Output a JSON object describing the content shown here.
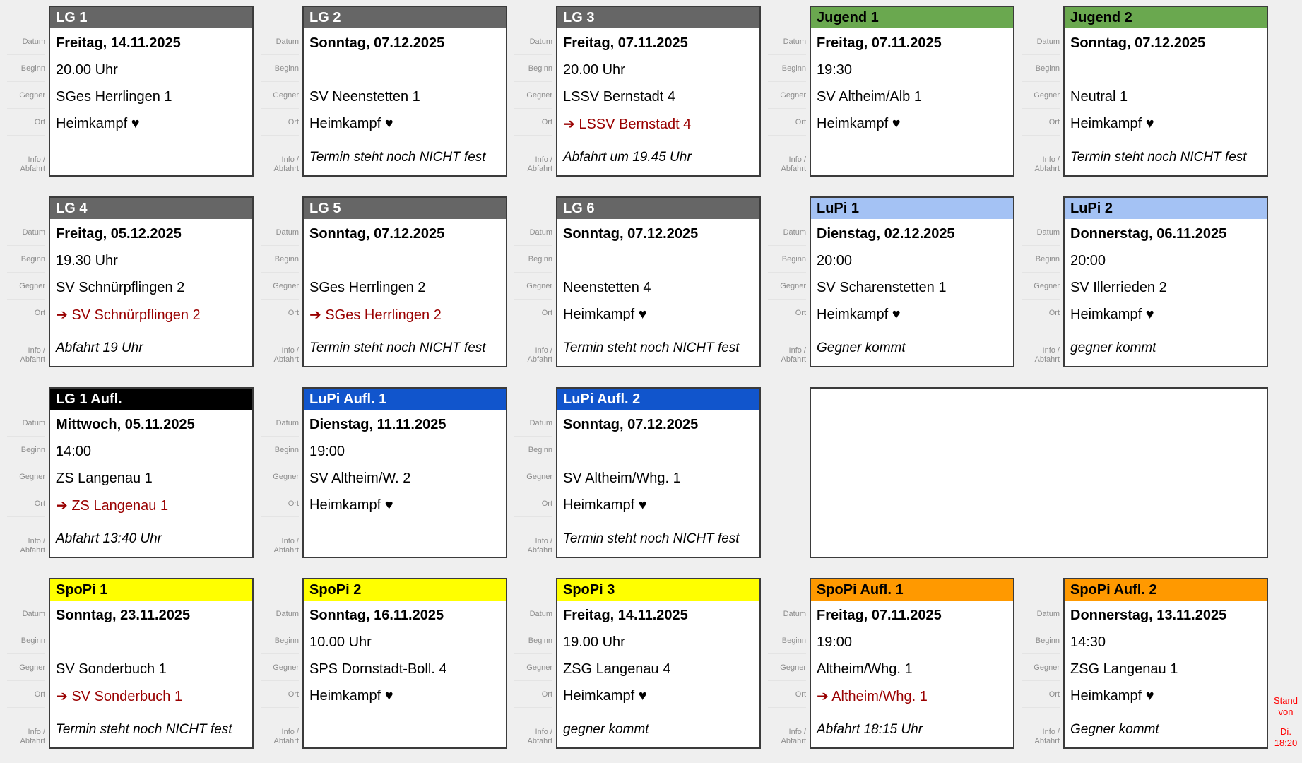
{
  "labels": {
    "datum": "Datum",
    "beginn": "Beginn",
    "gegner": "Gegner",
    "ort": "Ort",
    "info_line1": "Info /",
    "info_line2": "Abfahrt"
  },
  "stand_note": {
    "part1": "Stand von",
    "part2": "Di.",
    "part3": "18:20"
  },
  "palette": {
    "page_bg": "#efefef",
    "card_bg": "#ffffff",
    "card_border": "#3b3b3b",
    "away_red": "#990000",
    "stand_red": "#ff0000",
    "label_gray": "#8e8e8e"
  },
  "header_styles": {
    "gray": {
      "bg": "#666666",
      "fg": "#ffffff"
    },
    "green": {
      "bg": "#6aa84f",
      "fg": "#000000"
    },
    "lightblue": {
      "bg": "#a4c2f4",
      "fg": "#000000"
    },
    "black": {
      "bg": "#000000",
      "fg": "#ffffff"
    },
    "blue": {
      "bg": "#1155cc",
      "fg": "#ffffff"
    },
    "yellow": {
      "bg": "#ffff00",
      "fg": "#000000"
    },
    "orange": {
      "bg": "#ff9900",
      "fg": "#000000"
    }
  },
  "icons": {
    "home_heart": "♥",
    "away_arrow": "➔"
  },
  "grid": [
    {
      "row": 1,
      "col": 1,
      "title": "LG 1",
      "style": "gray",
      "datum": "Freitag, 14.11.2025",
      "beginn": "20.00 Uhr",
      "gegner": "SGes Herrlingen 1",
      "ort": "Heimkampf ♥",
      "ort_away": false,
      "info": ""
    },
    {
      "row": 1,
      "col": 2,
      "title": "LG 2",
      "style": "gray",
      "datum": "Sonntag, 07.12.2025",
      "beginn": "",
      "gegner": "SV Neenstetten 1",
      "ort": "Heimkampf ♥",
      "ort_away": false,
      "info": "Termin steht noch NICHT fest"
    },
    {
      "row": 1,
      "col": 3,
      "title": "LG 3",
      "style": "gray",
      "datum": "Freitag, 07.11.2025",
      "beginn": "20.00 Uhr",
      "gegner": "LSSV Bernstadt 4",
      "ort": "➔ LSSV Bernstadt 4",
      "ort_away": true,
      "info": "Abfahrt um 19.45 Uhr"
    },
    {
      "row": 1,
      "col": 4,
      "title": "Jugend 1",
      "style": "green",
      "datum": "Freitag, 07.11.2025",
      "beginn": "19:30",
      "gegner": "SV Altheim/Alb 1",
      "ort": "Heimkampf ♥",
      "ort_away": false,
      "info": ""
    },
    {
      "row": 1,
      "col": 5,
      "title": "Jugend 2",
      "style": "green",
      "datum": "Sonntag, 07.12.2025",
      "beginn": "",
      "gegner": "Neutral 1",
      "ort": "Heimkampf ♥",
      "ort_away": false,
      "info": "Termin steht noch NICHT fest"
    },
    {
      "row": 2,
      "col": 1,
      "title": "LG 4",
      "style": "gray",
      "datum": "Freitag, 05.12.2025",
      "beginn": "19.30 Uhr",
      "gegner": "SV Schnürpflingen 2",
      "ort": "➔ SV Schnürpflingen 2",
      "ort_away": true,
      "info": "Abfahrt 19 Uhr"
    },
    {
      "row": 2,
      "col": 2,
      "title": "LG 5",
      "style": "gray",
      "datum": "Sonntag, 07.12.2025",
      "beginn": "",
      "gegner": "SGes Herrlingen 2",
      "ort": "➔ SGes Herrlingen 2",
      "ort_away": true,
      "info": "Termin steht noch NICHT fest"
    },
    {
      "row": 2,
      "col": 3,
      "title": "LG 6",
      "style": "gray",
      "datum": "Sonntag, 07.12.2025",
      "beginn": "",
      "gegner": "Neenstetten 4",
      "ort": "Heimkampf ♥",
      "ort_away": false,
      "info": "Termin steht noch NICHT fest"
    },
    {
      "row": 2,
      "col": 4,
      "title": "LuPi 1",
      "style": "lightblue",
      "datum": "Dienstag, 02.12.2025",
      "beginn": "20:00",
      "gegner": "SV Scharenstetten 1",
      "ort": "Heimkampf ♥",
      "ort_away": false,
      "info": "Gegner kommt"
    },
    {
      "row": 2,
      "col": 5,
      "title": "LuPi 2",
      "style": "lightblue",
      "datum": "Donnerstag, 06.11.2025",
      "beginn": "20:00",
      "gegner": "SV Illerrieden 2",
      "ort": "Heimkampf ♥",
      "ort_away": false,
      "info": "gegner kommt"
    },
    {
      "row": 3,
      "col": 1,
      "title": "LG 1 Aufl.",
      "style": "black",
      "datum": "Mittwoch, 05.11.2025",
      "beginn": "14:00",
      "gegner": "ZS Langenau 1",
      "ort": "➔ ZS Langenau 1",
      "ort_away": true,
      "info": "Abfahrt 13:40 Uhr"
    },
    {
      "row": 3,
      "col": 2,
      "title": "LuPi Aufl. 1",
      "style": "blue",
      "datum": "Dienstag, 11.11.2025",
      "beginn": "19:00",
      "gegner": "SV Altheim/W. 2",
      "ort": "Heimkampf ♥",
      "ort_away": false,
      "info": ""
    },
    {
      "row": 3,
      "col": 3,
      "title": "LuPi Aufl. 2",
      "style": "blue",
      "datum": "Sonntag, 07.12.2025",
      "beginn": "",
      "gegner": "SV Altheim/Whg. 1",
      "ort": "Heimkampf ♥",
      "ort_away": false,
      "info": "Termin steht noch NICHT fest"
    },
    {
      "row": 3,
      "col": 4,
      "span": 2,
      "empty": true,
      "title": ""
    },
    {
      "row": 4,
      "col": 1,
      "title": "SpoPi 1",
      "style": "yellow",
      "datum": "Sonntag, 23.11.2025",
      "beginn": "",
      "gegner": "SV Sonderbuch 1",
      "ort": "➔ SV Sonderbuch 1",
      "ort_away": true,
      "info": "Termin steht noch NICHT fest"
    },
    {
      "row": 4,
      "col": 2,
      "title": "SpoPi 2",
      "style": "yellow",
      "datum": "Sonntag, 16.11.2025",
      "beginn": "10.00 Uhr",
      "gegner": "SPS Dornstadt-Boll. 4",
      "ort": "Heimkampf ♥",
      "ort_away": false,
      "info": ""
    },
    {
      "row": 4,
      "col": 3,
      "title": "SpoPi 3",
      "style": "yellow",
      "datum": "Freitag, 14.11.2025",
      "beginn": "19.00 Uhr",
      "gegner": "ZSG Langenau 4",
      "ort": "Heimkampf ♥",
      "ort_away": false,
      "info": "gegner kommt"
    },
    {
      "row": 4,
      "col": 4,
      "title": "SpoPi Aufl. 1",
      "style": "orange",
      "datum": "Freitag, 07.11.2025",
      "beginn": "19:00",
      "gegner": "Altheim/Whg. 1",
      "ort": "➔ Altheim/Whg. 1",
      "ort_away": true,
      "info": "Abfahrt 18:15 Uhr"
    },
    {
      "row": 4,
      "col": 5,
      "title": "SpoPi Aufl. 2",
      "style": "orange",
      "datum": "Donnerstag, 13.11.2025",
      "beginn": "14:30",
      "gegner": "ZSG Langenau 1",
      "ort": "Heimkampf ♥",
      "ort_away": false,
      "info": "Gegner kommt"
    }
  ]
}
